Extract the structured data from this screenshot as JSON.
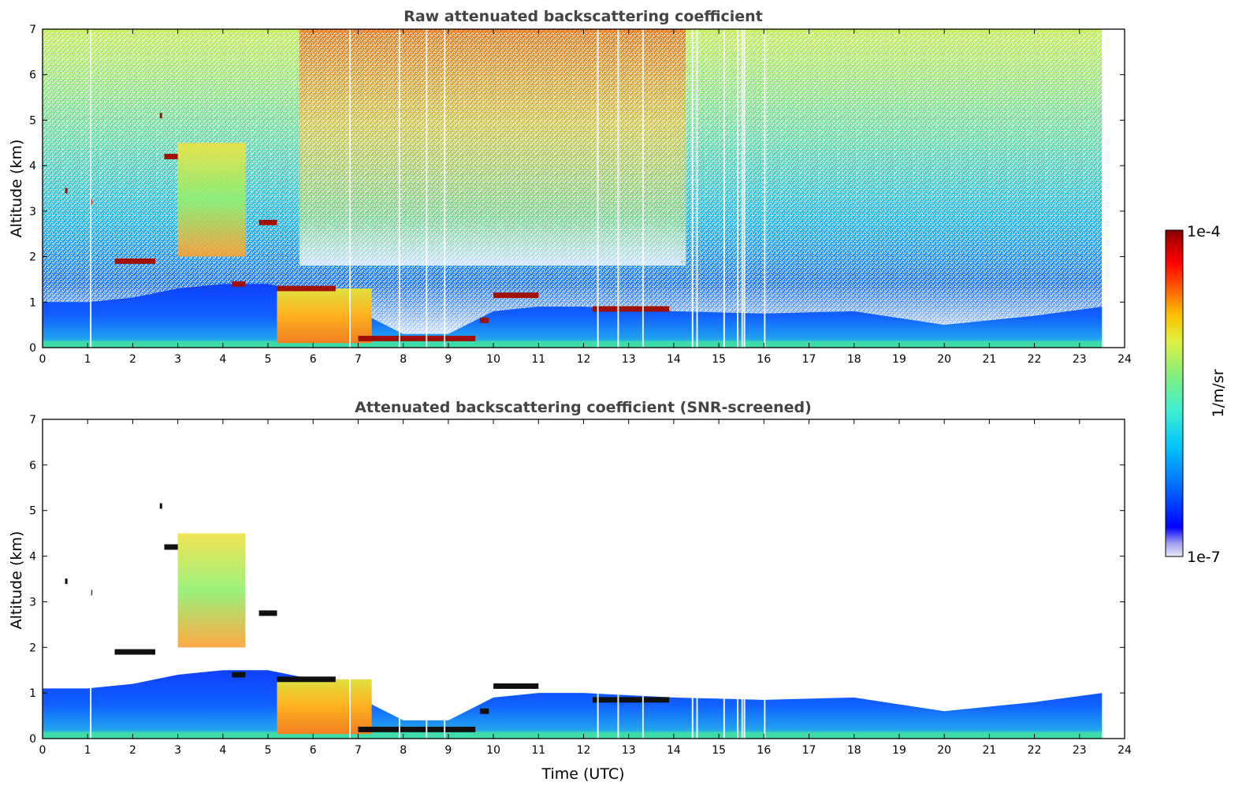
{
  "chart_data": [
    {
      "type": "heatmap",
      "title": "Raw attenuated backscattering coefficient",
      "xlabel": "",
      "ylabel": "Altitude (km)",
      "xlim": [
        0,
        24
      ],
      "ylim": [
        0,
        7
      ],
      "xticks": [
        "0",
        "1",
        "2",
        "3",
        "4",
        "5",
        "6",
        "7",
        "8",
        "9",
        "10",
        "11",
        "12",
        "13",
        "14",
        "15",
        "16",
        "17",
        "18",
        "19",
        "20",
        "21",
        "22",
        "23",
        "24"
      ],
      "yticks": [
        "0",
        "1",
        "2",
        "3",
        "4",
        "5",
        "6",
        "7"
      ],
      "data_end_time": 23.5,
      "boundary_layer_top": [
        {
          "x": 0,
          "y": 1.0
        },
        {
          "x": 1,
          "y": 1.0
        },
        {
          "x": 2,
          "y": 1.1
        },
        {
          "x": 3,
          "y": 1.3
        },
        {
          "x": 4,
          "y": 1.4
        },
        {
          "x": 5,
          "y": 1.4
        },
        {
          "x": 6,
          "y": 1.2
        },
        {
          "x": 7,
          "y": 0.8
        },
        {
          "x": 8,
          "y": 0.3
        },
        {
          "x": 9,
          "y": 0.3
        },
        {
          "x": 10,
          "y": 0.8
        },
        {
          "x": 11,
          "y": 0.9
        },
        {
          "x": 12,
          "y": 0.9
        },
        {
          "x": 13,
          "y": 0.85
        },
        {
          "x": 14,
          "y": 0.8
        },
        {
          "x": 16,
          "y": 0.75
        },
        {
          "x": 18,
          "y": 0.8
        },
        {
          "x": 20,
          "y": 0.5
        },
        {
          "x": 22,
          "y": 0.7
        },
        {
          "x": 23.5,
          "y": 0.9
        }
      ],
      "cloud_layers": [
        {
          "x": [
            0.5,
            0.55
          ],
          "y": 3.45
        },
        {
          "x": [
            1.05,
            1.1
          ],
          "y": 3.2
        },
        {
          "x": [
            1.6,
            2.5
          ],
          "y": 1.9
        },
        {
          "x": [
            2.6,
            2.65
          ],
          "y": 5.1
        },
        {
          "x": [
            2.7,
            3.0
          ],
          "y": 4.2
        },
        {
          "x": [
            4.2,
            4.5
          ],
          "y": 1.4
        },
        {
          "x": [
            4.8,
            5.2
          ],
          "y": 2.75
        },
        {
          "x": [
            5.2,
            6.5
          ],
          "y": 1.3
        },
        {
          "x": [
            7.0,
            9.6
          ],
          "y": 0.2
        },
        {
          "x": [
            9.7,
            9.9
          ],
          "y": 0.6
        },
        {
          "x": [
            10.0,
            11.0
          ],
          "y": 1.15
        },
        {
          "x": [
            12.2,
            13.9
          ],
          "y": 0.85
        }
      ],
      "aerosol_plumes": [
        {
          "x": [
            3.0,
            4.5
          ],
          "y": [
            2.0,
            4.5
          ]
        },
        {
          "x": [
            5.2,
            7.3
          ],
          "y": [
            0.1,
            1.3
          ]
        }
      ],
      "gaps": [
        1.05,
        6.8,
        7.9,
        8.5,
        8.9,
        12.3,
        12.75,
        13.3,
        14.4,
        14.5,
        15.1,
        15.4,
        15.5,
        15.55,
        16.0
      ]
    },
    {
      "type": "heatmap",
      "title": "Attenuated backscattering coefficient (SNR-screened)",
      "xlabel": "Time (UTC)",
      "ylabel": "Altitude (km)",
      "xlim": [
        0,
        24
      ],
      "ylim": [
        0,
        7
      ],
      "xticks": [
        "0",
        "1",
        "2",
        "3",
        "4",
        "5",
        "6",
        "7",
        "8",
        "9",
        "10",
        "11",
        "12",
        "13",
        "14",
        "15",
        "16",
        "17",
        "18",
        "19",
        "20",
        "21",
        "22",
        "23",
        "24"
      ],
      "yticks": [
        "0",
        "1",
        "2",
        "3",
        "4",
        "5",
        "6",
        "7"
      ]
    }
  ],
  "colorbar": {
    "label": "1/m/sr",
    "max_label": "1e-4",
    "min_label": "1e-7",
    "scale": "log",
    "colormap": [
      "#e8e8f8",
      "#a0a0f0",
      "#0000ff",
      "#0060ff",
      "#00c0ff",
      "#40f0d0",
      "#80f080",
      "#e0f040",
      "#ffc000",
      "#ff6000",
      "#ff0000",
      "#c00000",
      "#800000"
    ]
  },
  "colors": {
    "cloud_raw": "#a01000",
    "cloud_screened": "#101010",
    "axis": "#000000",
    "title": "#444444"
  }
}
